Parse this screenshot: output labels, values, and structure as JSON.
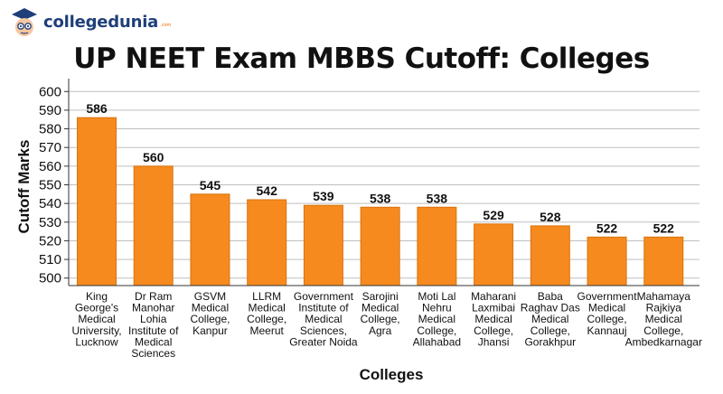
{
  "brand": {
    "name": "collegedunia",
    "suffix": ".com"
  },
  "colors": {
    "bar": "#f68a1e",
    "bar_stroke": "#d9730c",
    "grid": "#bfbfbf",
    "text": "#111111"
  },
  "chart_data": {
    "type": "bar",
    "title": "UP NEET Exam MBBS Cutoff: Colleges",
    "xlabel": "Colleges",
    "ylabel": "Cutoff Marks",
    "ylim": [
      496,
      604
    ],
    "yticks": [
      500,
      510,
      520,
      530,
      540,
      550,
      560,
      570,
      580,
      590,
      600
    ],
    "grid": true,
    "categories": [
      [
        "King",
        "George's",
        "Medical",
        "University,",
        "Lucknow"
      ],
      [
        "Dr Ram",
        "Manohar",
        "Lohia",
        "Institute of",
        "Medical",
        "Sciences"
      ],
      [
        "GSVM",
        "Medical",
        "College,",
        "Kanpur"
      ],
      [
        "LLRM",
        "Medical",
        "College,",
        "Meerut"
      ],
      [
        "Government",
        "Institute of",
        "Medical",
        "Sciences,",
        "Greater Noida"
      ],
      [
        "Sarojini",
        "Medical",
        "College,",
        "Agra"
      ],
      [
        "Moti Lal",
        "Nehru",
        "Medical",
        "College,",
        "Allahabad"
      ],
      [
        "Maharani",
        "Laxmibai",
        "Medical",
        "College,",
        "Jhansi"
      ],
      [
        "Baba",
        "Raghav Das",
        "Medical",
        "College,",
        "Gorakhpur"
      ],
      [
        "Government",
        "Medical",
        "College,",
        "Kannauj"
      ],
      [
        "Mahamaya",
        "Rajkiya",
        "Medical",
        "College,",
        "Ambedkarnagar"
      ]
    ],
    "values": [
      586,
      560,
      545,
      542,
      539,
      538,
      538,
      529,
      528,
      522,
      522
    ],
    "value_labels": [
      "586",
      "560",
      "545",
      "542",
      "539",
      "538",
      "538",
      "529",
      "528",
      "522",
      "522"
    ]
  }
}
